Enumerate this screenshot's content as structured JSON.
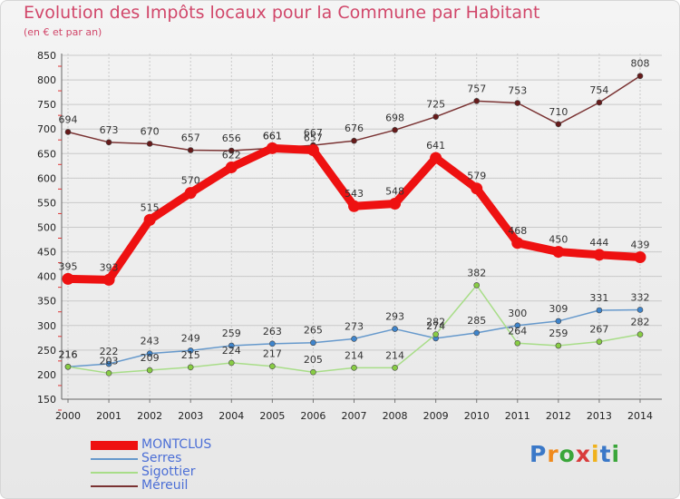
{
  "header": {
    "title": "Evolution des Impôts locaux pour la Commune par Habitant",
    "subtitle": "(en € et par an)"
  },
  "logo": {
    "text": "Proxiti"
  },
  "chart_data": {
    "type": "line",
    "title": "Evolution des Impôts locaux pour la Commune par Habitant",
    "subtitle": "(en € et par an)",
    "xlabel": "",
    "ylabel": "",
    "x": [
      "2000",
      "2001",
      "2002",
      "2003",
      "2004",
      "2005",
      "2006",
      "2007",
      "2008",
      "2009",
      "2010",
      "2011",
      "2012",
      "2013",
      "2014"
    ],
    "ylim": [
      150,
      850
    ],
    "yticks": [
      150,
      200,
      250,
      300,
      350,
      400,
      450,
      500,
      550,
      600,
      650,
      700,
      750,
      800,
      850
    ],
    "grid": true,
    "legend_position": "bottom-left",
    "series": [
      {
        "name": "MONTCLUS",
        "color": "#ee1111",
        "point_color": "#ee1111",
        "width": 9,
        "values": [
          395,
          393,
          515,
          570,
          622,
          661,
          657,
          543,
          548,
          641,
          579,
          468,
          450,
          444,
          439
        ]
      },
      {
        "name": "Serres",
        "color": "#6699cc",
        "point_color": "#3f85cc",
        "width": 1.5,
        "values": [
          216,
          222,
          243,
          249,
          259,
          263,
          265,
          273,
          293,
          274,
          285,
          300,
          309,
          331,
          332
        ]
      },
      {
        "name": "Sigottier",
        "color": "#a8dd88",
        "point_color": "#88cc44",
        "width": 1.5,
        "values": [
          216,
          203,
          209,
          215,
          224,
          217,
          205,
          214,
          214,
          282,
          382,
          264,
          259,
          267,
          282
        ]
      },
      {
        "name": "Méreuil",
        "color": "#7a3333",
        "point_color": "#661a1a",
        "width": 1.5,
        "values": [
          694,
          673,
          670,
          657,
          656,
          661,
          667,
          676,
          698,
          725,
          757,
          753,
          710,
          754,
          808
        ]
      }
    ]
  }
}
